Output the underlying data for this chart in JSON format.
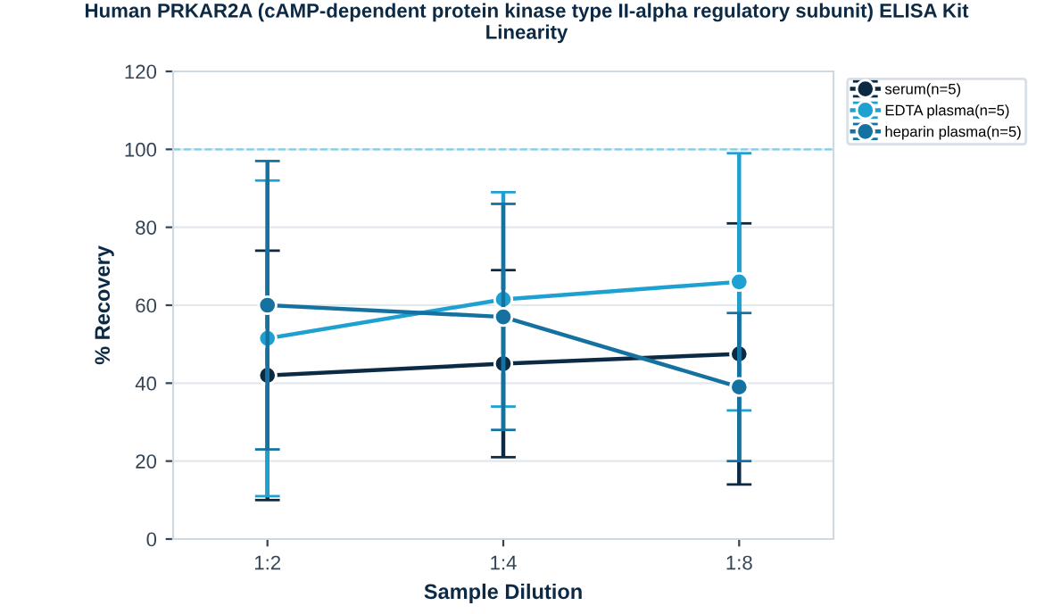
{
  "chart_data": {
    "type": "line",
    "title": "Human PRKAR2A (cAMP-dependent protein kinase type II-alpha regulatory subunit) ELISA Kit\nLinearity",
    "xlabel": "Sample Dilution",
    "ylabel": "% Recovery",
    "categories": [
      "1:2",
      "1:4",
      "1:8"
    ],
    "series": [
      {
        "name": "serum(n=5)",
        "color": "#0d2a45",
        "values": [
          42,
          45,
          47.5
        ],
        "errors": [
          32,
          24,
          33.5
        ]
      },
      {
        "name": "EDTA plasma(n=5)",
        "color": "#1ea0d0",
        "values": [
          51.5,
          61.5,
          66
        ],
        "errors": [
          40.5,
          27.5,
          33
        ]
      },
      {
        "name": "heparin plasma(n=5)",
        "color": "#1572a0",
        "values": [
          60,
          57,
          39
        ],
        "errors": [
          37,
          29,
          19
        ]
      }
    ],
    "ylim": [
      0,
      120
    ],
    "yticks": [
      0,
      20,
      40,
      60,
      80,
      100,
      120
    ],
    "ref_lines": [
      {
        "axis": "y",
        "value": 100,
        "color": "#7fd0e8",
        "line_style": "dashed"
      }
    ],
    "grid": "y",
    "legend": "top right",
    "marker": "circle",
    "line_style": "solid"
  }
}
